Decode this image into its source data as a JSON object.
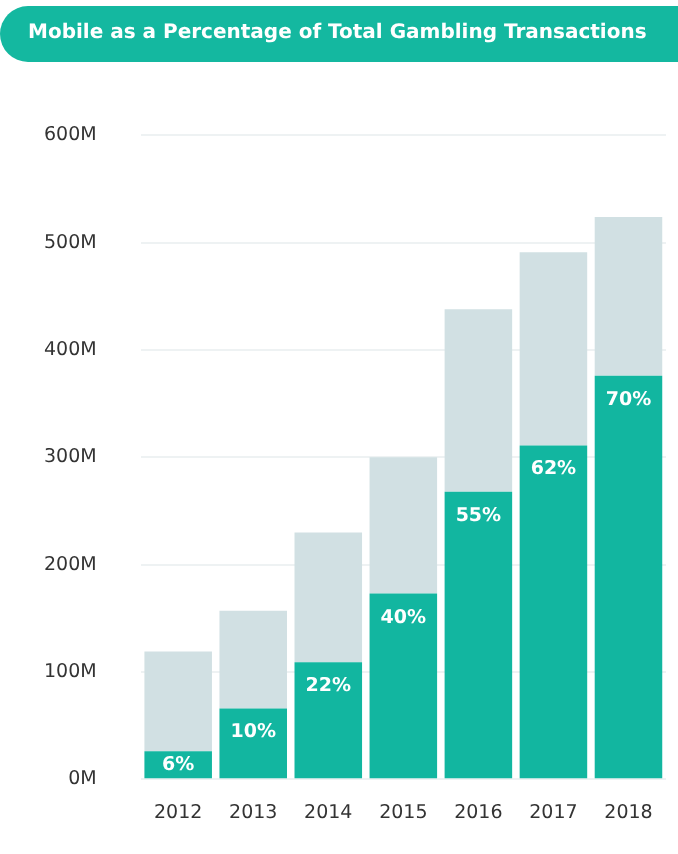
{
  "chart_data": {
    "type": "bar",
    "title": "Mobile as a Percentage of Total Gambling Transactions",
    "categories": [
      "2012",
      "2013",
      "2014",
      "2015",
      "2016",
      "2017",
      "2018"
    ],
    "stacked": true,
    "series": [
      {
        "color": "#12b6a0",
        "values": [
          26,
          66,
          109,
          173,
          268,
          311,
          376
        ]
      },
      {
        "color": "#d1e0e3",
        "values": [
          93,
          91,
          121,
          127,
          170,
          180,
          148
        ]
      }
    ],
    "annotations": [
      {
        "text": "6%",
        "x": "2012",
        "y": 26
      },
      {
        "text": "10%",
        "x": "2013",
        "y": 66
      },
      {
        "text": "22%",
        "x": "2014",
        "y": 109
      },
      {
        "text": "40%",
        "x": "2015",
        "y": 173
      },
      {
        "text": "55%",
        "x": "2016",
        "y": 268
      },
      {
        "text": "62%",
        "x": "2017",
        "y": 311
      },
      {
        "text": "70%",
        "x": "2018",
        "y": 376
      }
    ],
    "ylim": [
      0,
      600
    ],
    "yticks": [
      {
        "value": 0,
        "label": "0M"
      },
      {
        "value": 100,
        "label": "100M"
      },
      {
        "value": 200,
        "label": "200M"
      },
      {
        "value": 300,
        "label": "300M"
      },
      {
        "value": 400,
        "label": "400M"
      },
      {
        "value": 500,
        "label": "500M"
      },
      {
        "value": 600,
        "label": "600M"
      }
    ],
    "grid": "y",
    "legend": false
  }
}
